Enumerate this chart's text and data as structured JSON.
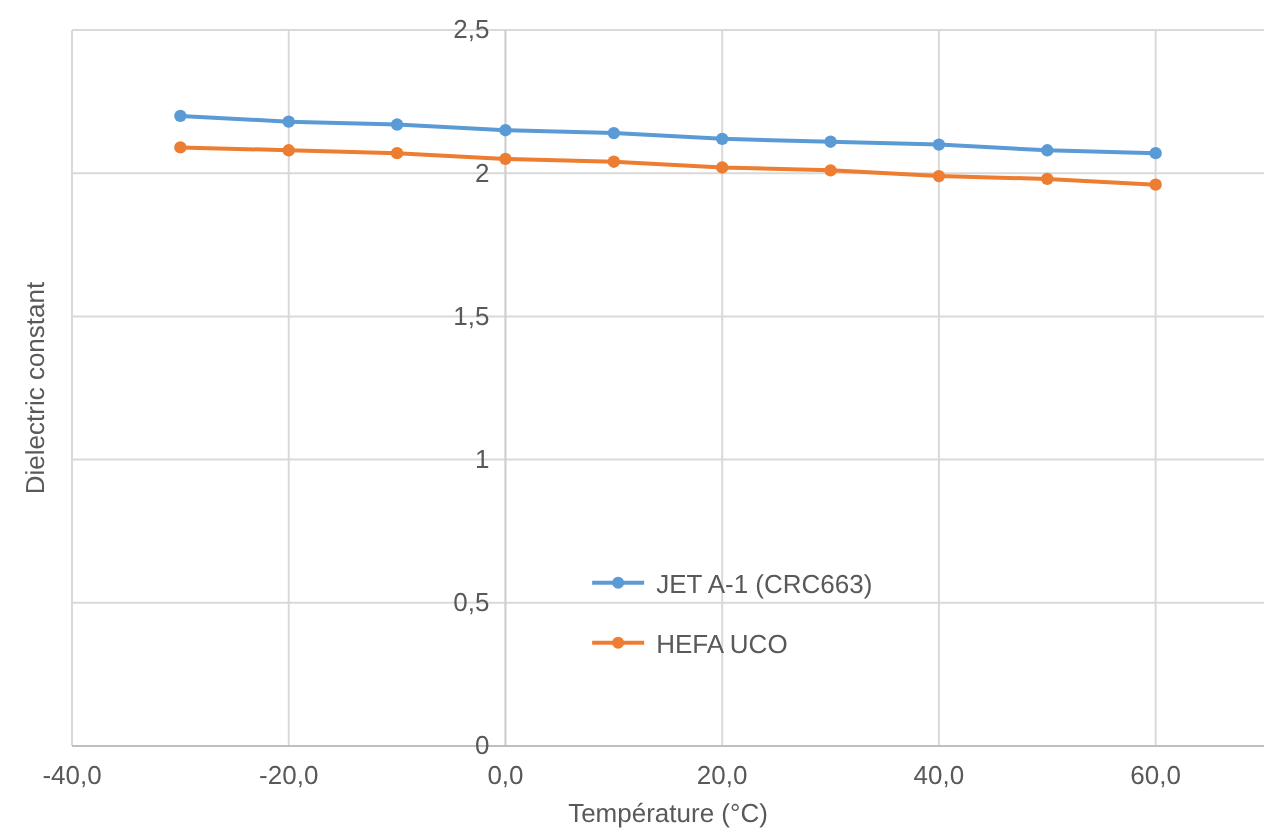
{
  "chart_data": {
    "type": "line",
    "xlabel": "Température (°C)",
    "ylabel": "Dielectric constant",
    "x": [
      -30,
      -20,
      -10,
      0,
      10,
      20,
      30,
      40,
      50,
      60
    ],
    "series": [
      {
        "name": "JET A-1 (CRC663)",
        "color": "#5b9bd5",
        "values": [
          2.2,
          2.18,
          2.17,
          2.15,
          2.14,
          2.12,
          2.11,
          2.1,
          2.08,
          2.07
        ]
      },
      {
        "name": "HEFA UCO",
        "color": "#ed7d31",
        "values": [
          2.09,
          2.08,
          2.07,
          2.05,
          2.04,
          2.02,
          2.01,
          1.99,
          1.98,
          1.96
        ]
      }
    ],
    "xlim": [
      -40,
      70
    ],
    "ylim": [
      0,
      2.5
    ],
    "xticks": [
      {
        "value": -40,
        "label": "-40,0"
      },
      {
        "value": -20,
        "label": "-20,0"
      },
      {
        "value": 0,
        "label": "0,0"
      },
      {
        "value": 20,
        "label": "20,0"
      },
      {
        "value": 40,
        "label": "40,0"
      },
      {
        "value": 60,
        "label": "60,0"
      }
    ],
    "yticks": [
      0,
      {
        "value": 0.5,
        "label": "0,5"
      },
      1,
      {
        "value": 1.5,
        "label": "1,5"
      },
      2,
      {
        "value": 2.5,
        "label": "2,5"
      }
    ],
    "grid": true,
    "legend": "bottom",
    "marker": "circle",
    "line_style": "solid"
  }
}
